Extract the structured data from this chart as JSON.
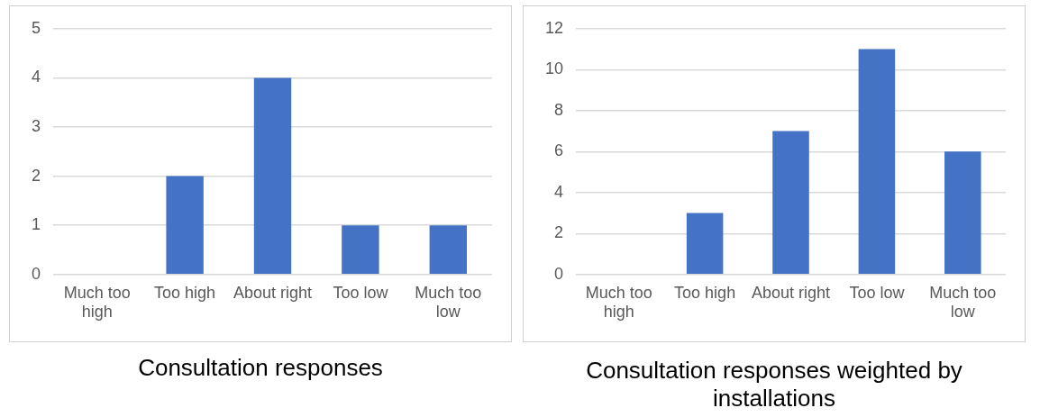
{
  "chart_data": [
    {
      "type": "bar",
      "title": "Consultation responses",
      "categories": [
        "Much too high",
        "Too high",
        "About right",
        "Too low",
        "Much too low"
      ],
      "values": [
        0,
        2,
        4,
        1,
        1
      ],
      "color": "#4472c4",
      "ylim": [
        0,
        5
      ],
      "yticks": [
        0,
        1,
        2,
        3,
        4,
        5
      ],
      "grid": "y",
      "legend": false
    },
    {
      "type": "bar",
      "title": "Consultation responses weighted by installations",
      "categories": [
        "Much too high",
        "Too high",
        "About right",
        "Too low",
        "Much too low"
      ],
      "values": [
        0,
        3,
        7,
        11,
        6
      ],
      "color": "#4472c4",
      "ylim": [
        0,
        12
      ],
      "yticks": [
        0,
        2,
        4,
        6,
        8,
        10,
        12
      ],
      "grid": "y",
      "legend": false
    }
  ]
}
